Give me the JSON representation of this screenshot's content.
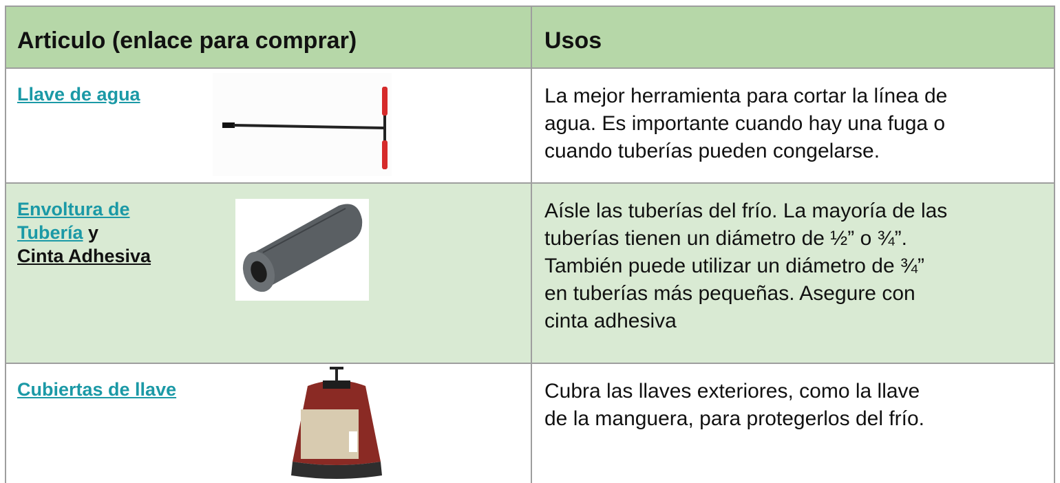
{
  "table": {
    "header": [
      "Articulo (enlace para comprar)",
      "Usos"
    ],
    "rows": [
      {
        "item": [
          "Llave de agua"
        ],
        "uses": [
          "La mejor herramienta para cortar la línea de",
          "agua. Es importante cuando hay una fuga o",
          "cuando tuberías pueden congelarse."
        ]
      },
      {
        "item": [
          "Envoltura de Tubería",
          "y",
          "Cinta Adhesiva"
        ],
        "uses": [
          "Aísle las tuberías del frío. La mayoría de las",
          "tuberías tienen un diámetro de ½” o ¾”.",
          "También puede utilizar un diámetro de ¾”",
          "en tuberías más pequeñas. Asegure con",
          "cinta adhesiva"
        ]
      },
      {
        "item": [
          "Cubiertas de llave"
        ],
        "uses": [
          "Cubra las llaves exteriores, como la llave",
          "de la manguera, para protegerlos del frío."
        ]
      }
    ]
  }
}
